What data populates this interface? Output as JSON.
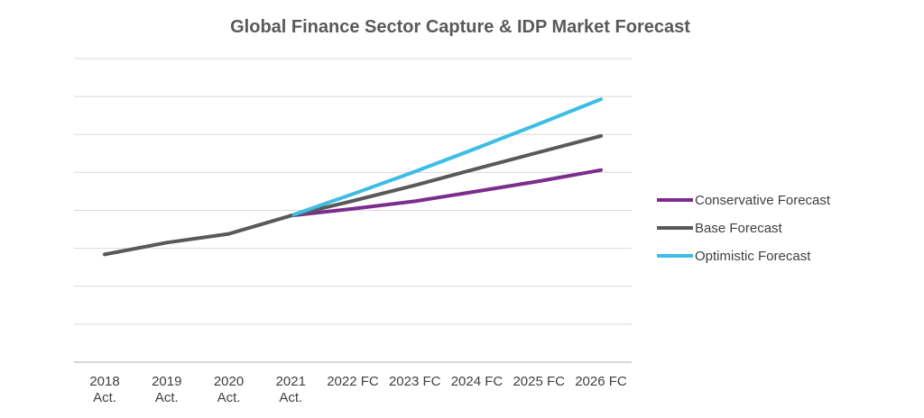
{
  "chart_data": {
    "type": "line",
    "title": "Global Finance Sector Capture & IDP  Market Forecast",
    "xlabel": "",
    "ylabel": "",
    "categories": [
      [
        "2018",
        "Act."
      ],
      [
        "2019",
        "Act."
      ],
      [
        "2020",
        "Act."
      ],
      [
        "2021",
        "Act."
      ],
      [
        "2022 FC"
      ],
      [
        "2023 FC"
      ],
      [
        "2024 FC"
      ],
      [
        "2025 FC"
      ],
      [
        "2026 FC"
      ]
    ],
    "ylim": [
      0,
      8
    ],
    "gridlines": 8,
    "grid": true,
    "legend_position": "right",
    "series": [
      {
        "name": "Conservative Forecast",
        "color": "#7b2d8e",
        "values": [
          null,
          null,
          null,
          3.86,
          4.04,
          4.24,
          4.5,
          4.77,
          5.06
        ]
      },
      {
        "name": "Base Forecast",
        "color": "#595959",
        "values": [
          null,
          null,
          null,
          3.86,
          4.25,
          4.66,
          5.1,
          5.53,
          5.96
        ]
      },
      {
        "name": "Optimistic Forecast",
        "color": "#3dbde6",
        "values": [
          null,
          null,
          null,
          3.86,
          4.43,
          5.02,
          5.64,
          6.28,
          6.93
        ]
      },
      {
        "name": "Actual",
        "color": "#595959",
        "in_legend": false,
        "values": [
          2.84,
          3.15,
          3.38,
          3.86,
          null,
          null,
          null,
          null,
          null
        ]
      }
    ]
  }
}
